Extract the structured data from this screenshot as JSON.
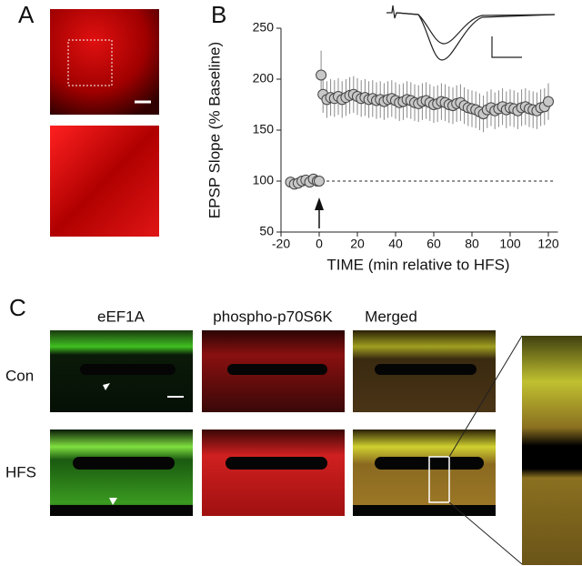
{
  "figure": {
    "panel_labels": [
      "A",
      "B",
      "C"
    ],
    "columns": [
      "eEF1A",
      "phospho-p70S6K",
      "Merged"
    ],
    "rows": [
      "Con",
      "HFS"
    ]
  },
  "chart_data": {
    "type": "scatter",
    "xlabel": "TIME (min relative to HFS)",
    "ylabel": "EPSP Slope (% Baseline)",
    "xlim": [
      -20,
      125
    ],
    "ylim": [
      50,
      250
    ],
    "xticks": [
      -20,
      0,
      20,
      40,
      60,
      80,
      100,
      120
    ],
    "yticks": [
      50,
      100,
      150,
      200,
      250
    ],
    "hline": 100,
    "arrow_x": 0,
    "series": [
      {
        "color": "#c8c8c8",
        "x": [
          -15,
          -13,
          -11,
          -9,
          -7,
          -5,
          -3,
          -1,
          0,
          1,
          2,
          4,
          6,
          8,
          10,
          12,
          14,
          16,
          18,
          20,
          22,
          24,
          26,
          28,
          30,
          32,
          34,
          36,
          38,
          40,
          42,
          44,
          46,
          48,
          50,
          52,
          54,
          56,
          58,
          60,
          62,
          64,
          66,
          68,
          70,
          72,
          74,
          76,
          78,
          80,
          82,
          84,
          86,
          88,
          90,
          92,
          94,
          96,
          98,
          100,
          102,
          104,
          106,
          108,
          110,
          112,
          114,
          116,
          118,
          120
        ],
        "values": [
          99,
          97,
          98,
          100,
          101,
          99,
          102,
          100,
          100,
          204,
          185,
          180,
          182,
          181,
          183,
          180,
          182,
          184,
          185,
          183,
          181,
          182,
          180,
          181,
          179,
          180,
          178,
          180,
          181,
          179,
          177,
          178,
          180,
          179,
          177,
          176,
          178,
          179,
          177,
          175,
          176,
          178,
          177,
          175,
          174,
          176,
          177,
          174,
          172,
          171,
          170,
          168,
          166,
          170,
          172,
          169,
          171,
          173,
          170,
          172,
          171,
          169,
          172,
          173,
          171,
          170,
          169,
          172,
          173,
          178
        ],
        "errors": [
          3,
          3,
          3,
          3,
          3,
          3,
          3,
          3,
          3,
          24,
          18,
          18,
          18,
          18,
          18,
          18,
          18,
          18,
          18,
          18,
          18,
          18,
          18,
          18,
          18,
          18,
          18,
          18,
          18,
          18,
          18,
          18,
          18,
          18,
          18,
          18,
          18,
          18,
          18,
          18,
          18,
          18,
          18,
          18,
          18,
          18,
          18,
          18,
          18,
          18,
          18,
          18,
          18,
          18,
          18,
          18,
          18,
          18,
          18,
          18,
          18,
          18,
          18,
          18,
          18,
          18,
          18,
          18,
          18,
          18
        ]
      }
    ]
  }
}
